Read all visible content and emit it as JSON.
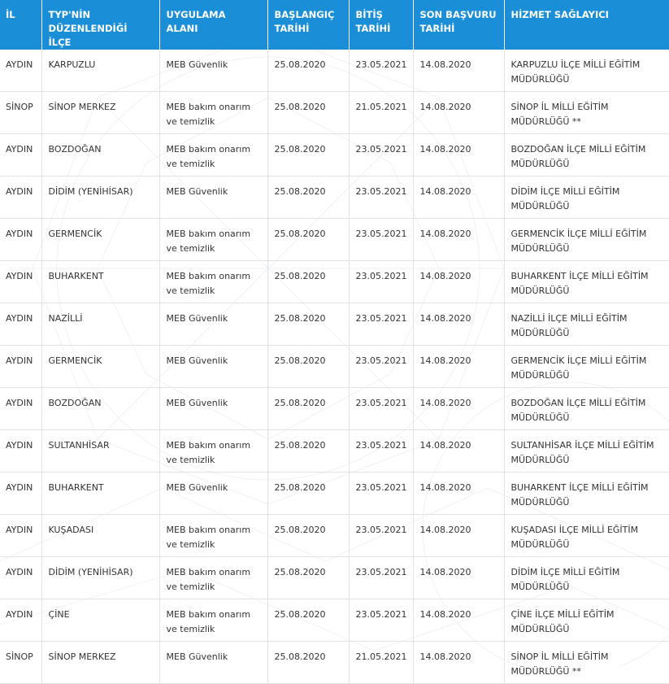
{
  "headers": [
    "İL",
    "TYP'nin Düzenlendiği İlçe",
    "UYGULAMA ALANI",
    "BAŞLANGIÇ TARİHİ",
    "BİTİŞ TARİHİ",
    "SON BAŞVURU TARİHİ",
    "HİZMET SAĞLAYICI"
  ],
  "header_display": [
    [
      "İL"
    ],
    [
      "TYP'NİN",
      "DÜZENLENDİĞİ İLÇE"
    ],
    [
      "UYGULAMA ALANI"
    ],
    [
      "BAŞLANGIÇ",
      "TARİHİ"
    ],
    [
      "BİTİŞ",
      "TARİHİ"
    ],
    [
      "SON BAŞVURU",
      "TARİHİ"
    ],
    [
      "HİZMET SAĞLAYICI"
    ]
  ],
  "rows": [
    {
      "il": "AYDIN",
      "ilce": "KARPUZLU",
      "alan": "MEB Güvenlik",
      "baslangic": "25.08.2020",
      "bitis": "23.05.2021",
      "son": "14.08.2020",
      "saglayici": "KARPUZLU İLÇE MİLLİ EĞİTİM MÜDÜRLÜĞÜ"
    },
    {
      "il": "SİNOP",
      "ilce": "SİNOP MERKEZ",
      "alan": "MEB bakım onarım ve temizlik",
      "baslangic": "25.08.2020",
      "bitis": "21.05.2021",
      "son": "14.08.2020",
      "saglayici": "SİNOP İL MİLLİ EĞİTİM MÜDÜRLÜĞÜ **"
    },
    {
      "il": "AYDIN",
      "ilce": "BOZDOĞAN",
      "alan": "MEB bakım onarım ve temizlik",
      "baslangic": "25.08.2020",
      "bitis": "23.05.2021",
      "son": "14.08.2020",
      "saglayici": "BOZDOĞAN İLÇE MİLLİ EĞİTİM MÜDÜRLÜĞÜ"
    },
    {
      "il": "AYDIN",
      "ilce": "DİDİM (YENİHİSAR)",
      "alan": "MEB Güvenlik",
      "baslangic": "25.08.2020",
      "bitis": "23.05.2021",
      "son": "14.08.2020",
      "saglayici": "DİDİM İLÇE MİLLİ EĞİTİM MÜDÜRLÜĞÜ"
    },
    {
      "il": "AYDIN",
      "ilce": "GERMENCİK",
      "alan": "MEB bakım onarım ve temizlik",
      "baslangic": "25.08.2020",
      "bitis": "23.05.2021",
      "son": "14.08.2020",
      "saglayici": "GERMENCİK İLÇE MİLLİ EĞİTİM MÜDÜRLÜĞÜ"
    },
    {
      "il": "AYDIN",
      "ilce": "BUHARKENT",
      "alan": "MEB bakım onarım ve temizlik",
      "baslangic": "25.08.2020",
      "bitis": "23.05.2021",
      "son": "14.08.2020",
      "saglayici": "BUHARKENT İLÇE MİLLİ EĞİTİM MÜDÜRLÜĞÜ"
    },
    {
      "il": "AYDIN",
      "ilce": "NAZİLLİ",
      "alan": "MEB Güvenlik",
      "baslangic": "25.08.2020",
      "bitis": "23.05.2021",
      "son": "14.08.2020",
      "saglayici": "NAZİLLİ İLÇE MİLLİ EĞİTİM MÜDÜRLÜĞÜ"
    },
    {
      "il": "AYDIN",
      "ilce": "GERMENCİK",
      "alan": "MEB Güvenlik",
      "baslangic": "25.08.2020",
      "bitis": "23.05.2021",
      "son": "14.08.2020",
      "saglayici": "GERMENCİK İLÇE MİLLİ EĞİTİM MÜDÜRLÜĞÜ"
    },
    {
      "il": "AYDIN",
      "ilce": "BOZDOĞAN",
      "alan": "MEB Güvenlik",
      "baslangic": "25.08.2020",
      "bitis": "23.05.2021",
      "son": "14.08.2020",
      "saglayici": "BOZDOĞAN İLÇE MİLLİ EĞİTİM MÜDÜRLÜĞÜ"
    },
    {
      "il": "AYDIN",
      "ilce": "SULTANHİSAR",
      "alan": "MEB bakım onarım ve temizlik",
      "baslangic": "25.08.2020",
      "bitis": "23.05.2021",
      "son": "14.08.2020",
      "saglayici": "SULTANHİSAR İLÇE MİLLİ EĞİTİM MÜDÜRLÜĞÜ"
    },
    {
      "il": "AYDIN",
      "ilce": "BUHARKENT",
      "alan": "MEB Güvenlik",
      "baslangic": "25.08.2020",
      "bitis": "23.05.2021",
      "son": "14.08.2020",
      "saglayici": "BUHARKENT İLÇE MİLLİ EĞİTİM MÜDÜRLÜĞÜ"
    },
    {
      "il": "AYDIN",
      "ilce": "KUŞADASI",
      "alan": "MEB bakım onarım ve temizlik",
      "baslangic": "25.08.2020",
      "bitis": "23.05.2021",
      "son": "14.08.2020",
      "saglayici": "KUŞADASI İLÇE MİLLİ EĞİTİM MÜDÜRLÜĞÜ"
    },
    {
      "il": "AYDIN",
      "ilce": "DİDİM (YENİHİSAR)",
      "alan": "MEB bakım onarım ve temizlik",
      "baslangic": "25.08.2020",
      "bitis": "23.05.2021",
      "son": "14.08.2020",
      "saglayici": "DİDİM İLÇE MİLLİ EĞİTİM MÜDÜRLÜĞÜ"
    },
    {
      "il": "AYDIN",
      "ilce": "ÇİNE",
      "alan": "MEB bakım onarım ve temizlik",
      "baslangic": "25.08.2020",
      "bitis": "23.05.2021",
      "son": "14.08.2020",
      "saglayici": "ÇİNE İLÇE MİLLİ EĞİTİM MÜDÜRLÜĞÜ"
    },
    {
      "il": "SİNOP",
      "ilce": "SİNOP MERKEZ",
      "alan": "MEB Güvenlik",
      "baslangic": "25.08.2020",
      "bitis": "21.05.2021",
      "son": "14.08.2020",
      "saglayici": "SİNOP İL MİLLİ EĞİTİM MÜDÜRLÜĞÜ **"
    }
  ],
  "colors": {
    "header_bg": "#1a8fd8",
    "header_text": "#ffffff",
    "grid": "#e2e2e2",
    "text": "#333333",
    "pattern": "#eef2f5"
  }
}
